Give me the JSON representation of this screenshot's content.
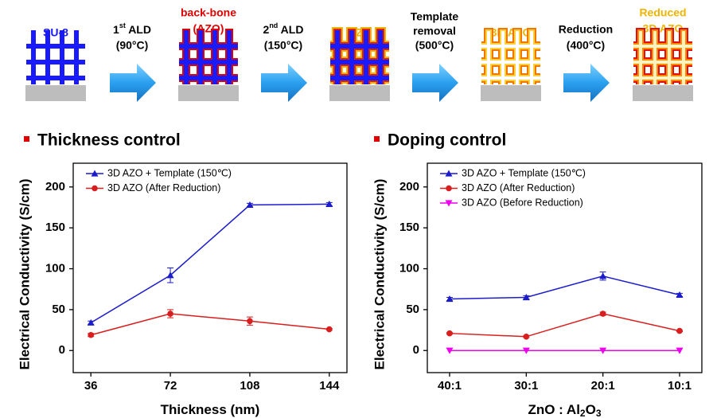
{
  "process": {
    "steps": [
      {
        "lines": [
          "SU-8"
        ],
        "color": "#1a1aff"
      },
      {
        "lines": [
          "back-bone",
          "(AZO)"
        ],
        "color": "#e00000"
      },
      {
        "lines": [
          "AZO"
        ],
        "color": "#f0b400"
      },
      {
        "lines": [
          "3D AZO"
        ],
        "color": "#f0b400"
      },
      {
        "lines": [
          "Reduced",
          "3D AZO"
        ],
        "color": "#f0b400"
      }
    ],
    "transitions": [
      {
        "lines": [
          {
            "num": "1",
            "sup": "st",
            "text": " ALD"
          },
          "(90°C)"
        ]
      },
      {
        "lines": [
          {
            "num": "2",
            "sup": "nd",
            "text": " ALD"
          },
          "(150°C)"
        ]
      },
      {
        "lines": [
          "Template",
          "removal",
          "(500°C)"
        ]
      },
      {
        "lines": [
          "Reduction",
          "(400°C)"
        ]
      }
    ]
  },
  "chart_data": [
    {
      "type": "line",
      "title": "Thickness control",
      "x_label": [
        "Thickness (nm)"
      ],
      "y_label": "Electrical Conductivity (S/cm)",
      "x": [
        36,
        72,
        108,
        144
      ],
      "xlim": [
        28,
        152
      ],
      "xticks": [
        36,
        72,
        108,
        144
      ],
      "ylim": [
        -27,
        229
      ],
      "yticks": [
        0,
        50,
        100,
        150,
        200
      ],
      "legend": "upper left",
      "series": [
        {
          "name": "3D AZO + Template (150℃)",
          "color": "#1c1ccc",
          "marker": "triangle-up",
          "values": [
            34,
            92,
            178,
            179
          ],
          "errors": [
            2,
            9,
            2,
            2
          ]
        },
        {
          "name": "3D AZO (After Reduction)",
          "color": "#d81e1e",
          "marker": "circle",
          "values": [
            19,
            45,
            36,
            26
          ],
          "errors": [
            2,
            5,
            5,
            1
          ]
        }
      ]
    },
    {
      "type": "line",
      "title": "Doping control",
      "x_label": [
        "ZnO : Al",
        "2",
        "O",
        "3"
      ],
      "y_label": "Electrical Conductivity (S/cm)",
      "categories": [
        "40:1",
        "30:1",
        "20:1",
        "10:1"
      ],
      "ylim": [
        -27,
        229
      ],
      "yticks": [
        0,
        50,
        100,
        150,
        200
      ],
      "legend": "upper left",
      "series": [
        {
          "name": "3D AZO + Template (150℃)",
          "color": "#1c1ccc",
          "marker": "triangle-up",
          "values": [
            63,
            65,
            91,
            68
          ],
          "errors": [
            2,
            2,
            5,
            2
          ]
        },
        {
          "name": "3D AZO (After Reduction)",
          "color": "#d81e1e",
          "marker": "circle",
          "values": [
            21,
            17,
            45,
            24
          ],
          "errors": [
            1,
            1,
            2,
            1
          ]
        },
        {
          "name": "3D AZO (Before Reduction)",
          "color": "#f000f0",
          "marker": "triangle-down",
          "values": [
            0,
            0,
            0,
            0
          ]
        }
      ]
    }
  ]
}
